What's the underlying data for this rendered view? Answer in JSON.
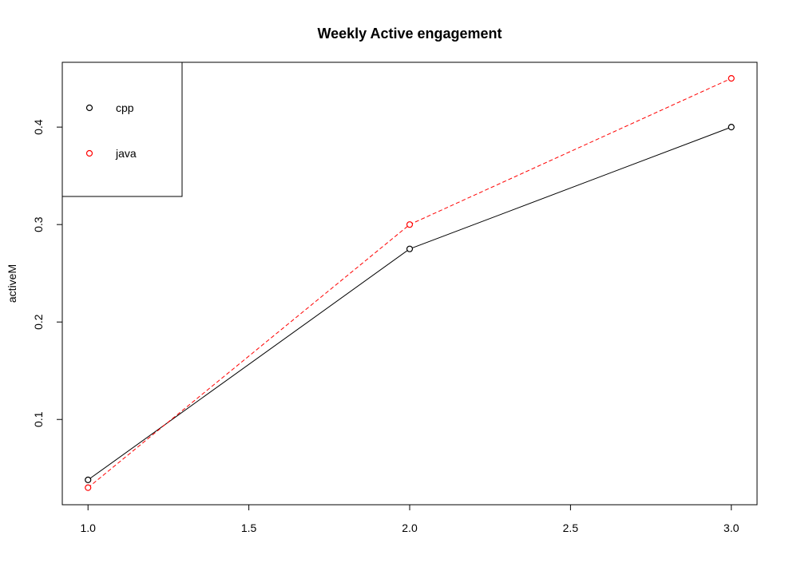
{
  "chart_data": {
    "type": "line",
    "title": "Weekly Active engagement",
    "xlabel": "",
    "ylabel": "activeM",
    "x": [
      1.0,
      2.0,
      3.0
    ],
    "xlim": [
      0.92,
      3.08
    ],
    "ylim": [
      0.0125,
      0.4665
    ],
    "x_ticks": [
      1.0,
      1.5,
      2.0,
      2.5,
      3.0
    ],
    "x_tick_labels": [
      "1.0",
      "1.5",
      "2.0",
      "2.5",
      "3.0"
    ],
    "y_ticks": [
      0.1,
      0.2,
      0.3,
      0.4
    ],
    "y_tick_labels": [
      "0.1",
      "0.2",
      "0.3",
      "0.4"
    ],
    "grid": false,
    "legend_position": "top-left",
    "series": [
      {
        "name": "cpp",
        "values": [
          0.038,
          0.275,
          0.4
        ],
        "color": "#000000",
        "line_style": "solid",
        "marker": "open-circle"
      },
      {
        "name": "java",
        "values": [
          0.03,
          0.3,
          0.45
        ],
        "color": "#ff0000",
        "line_style": "dashed",
        "marker": "open-circle"
      }
    ]
  }
}
